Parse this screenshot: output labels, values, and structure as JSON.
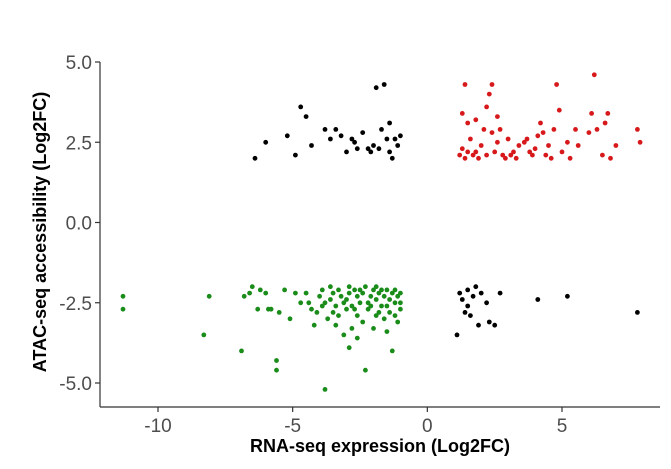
{
  "chart_data": {
    "type": "scatter",
    "title": "",
    "xlabel": "RNA-seq expression (Log2FC)",
    "ylabel": "ATAC-seq accessibility (Log2FC)",
    "xlim": [
      -12,
      9
    ],
    "ylim": [
      -5.6,
      5.2
    ],
    "x_ticks": [
      -10,
      -5,
      0,
      5
    ],
    "x_tick_labels": [
      "-10",
      "-5",
      "0",
      "5"
    ],
    "y_ticks": [
      5.0,
      2.5,
      0.0,
      -2.5,
      -5.0
    ],
    "y_tick_labels": [
      "5.0",
      "2.5",
      "0.0",
      "-2.5",
      "-5.0"
    ],
    "grid": false,
    "legend": "none",
    "series": [
      {
        "color": "#d7191c",
        "points": [
          [
            1.2,
            2.1
          ],
          [
            1.3,
            2.3
          ],
          [
            1.4,
            2.0
          ],
          [
            1.5,
            2.2
          ],
          [
            1.6,
            2.6
          ],
          [
            1.7,
            2.1
          ],
          [
            1.8,
            2.2
          ],
          [
            1.3,
            3.4
          ],
          [
            1.5,
            3.1
          ],
          [
            1.4,
            4.3
          ],
          [
            1.9,
            2.0
          ],
          [
            2.0,
            2.4
          ],
          [
            2.1,
            2.9
          ],
          [
            2.2,
            2.1
          ],
          [
            2.3,
            4.0
          ],
          [
            2.4,
            2.8
          ],
          [
            2.5,
            2.2
          ],
          [
            2.6,
            3.3
          ],
          [
            2.7,
            2.9
          ],
          [
            2.8,
            2.1
          ],
          [
            2.9,
            2.0
          ],
          [
            3.0,
            2.6
          ],
          [
            3.1,
            2.1
          ],
          [
            3.2,
            2.2
          ],
          [
            3.4,
            2.4
          ],
          [
            3.6,
            2.5
          ],
          [
            3.8,
            2.2
          ],
          [
            3.9,
            2.1
          ],
          [
            4.0,
            2.3
          ],
          [
            4.1,
            2.7
          ],
          [
            4.3,
            2.8
          ],
          [
            4.4,
            2.1
          ],
          [
            4.5,
            2.4
          ],
          [
            4.6,
            2.0
          ],
          [
            4.7,
            2.9
          ],
          [
            4.8,
            4.3
          ],
          [
            4.9,
            3.5
          ],
          [
            5.0,
            2.2
          ],
          [
            5.2,
            2.5
          ],
          [
            5.3,
            2.0
          ],
          [
            5.5,
            2.9
          ],
          [
            5.6,
            2.4
          ],
          [
            1.8,
            3.2
          ],
          [
            2.2,
            3.6
          ],
          [
            2.4,
            4.3
          ],
          [
            3.7,
            2.6
          ],
          [
            4.2,
            3.1
          ],
          [
            6.0,
            2.8
          ],
          [
            6.1,
            3.4
          ],
          [
            6.2,
            4.6
          ],
          [
            6.3,
            2.9
          ],
          [
            6.5,
            2.1
          ],
          [
            6.6,
            3.1
          ],
          [
            6.7,
            3.4
          ],
          [
            6.8,
            2.0
          ],
          [
            7.0,
            2.4
          ],
          [
            7.8,
            2.9
          ],
          [
            7.9,
            2.5
          ],
          [
            2.6,
            2.5
          ],
          [
            3.3,
            2.0
          ]
        ]
      },
      {
        "color": "#000000",
        "points": [
          [
            -6.4,
            2.0
          ],
          [
            -6.0,
            2.5
          ],
          [
            -5.2,
            2.7
          ],
          [
            -4.9,
            2.1
          ],
          [
            -4.7,
            3.6
          ],
          [
            -4.5,
            3.3
          ],
          [
            -4.3,
            2.4
          ],
          [
            -3.8,
            2.9
          ],
          [
            -3.6,
            2.6
          ],
          [
            -3.4,
            2.9
          ],
          [
            -3.2,
            2.7
          ],
          [
            -3.0,
            2.2
          ],
          [
            -2.8,
            2.6
          ],
          [
            -2.6,
            2.3
          ],
          [
            -2.4,
            2.8
          ],
          [
            -2.2,
            2.3
          ],
          [
            -2.0,
            2.4
          ],
          [
            -1.9,
            4.2
          ],
          [
            -1.7,
            2.9
          ],
          [
            -1.6,
            4.3
          ],
          [
            -1.5,
            2.6
          ],
          [
            -1.4,
            2.2
          ],
          [
            -1.3,
            2.0
          ],
          [
            -1.2,
            2.6
          ],
          [
            -1.1,
            2.4
          ],
          [
            -1.0,
            2.7
          ],
          [
            -1.4,
            3.1
          ],
          [
            -2.7,
            2.5
          ],
          [
            -2.1,
            2.2
          ],
          [
            -1.8,
            2.3
          ],
          [
            1.1,
            -3.5
          ],
          [
            1.2,
            -2.2
          ],
          [
            1.3,
            -2.4
          ],
          [
            1.4,
            -2.8
          ],
          [
            1.5,
            -2.1
          ],
          [
            1.6,
            -2.9
          ],
          [
            1.7,
            -2.3
          ],
          [
            1.8,
            -2.0
          ],
          [
            2.0,
            -2.2
          ],
          [
            2.2,
            -2.5
          ],
          [
            2.3,
            -3.1
          ],
          [
            2.5,
            -3.2
          ],
          [
            2.7,
            -2.2
          ],
          [
            4.1,
            -2.4
          ],
          [
            5.2,
            -2.3
          ],
          [
            7.8,
            -2.8
          ],
          [
            1.9,
            -3.2
          ],
          [
            1.5,
            -2.6
          ]
        ]
      },
      {
        "color": "#1a8c1a",
        "points": [
          [
            -11.3,
            -2.3
          ],
          [
            -11.3,
            -2.7
          ],
          [
            -8.3,
            -3.5
          ],
          [
            -8.1,
            -2.3
          ],
          [
            -6.9,
            -4.0
          ],
          [
            -6.8,
            -2.3
          ],
          [
            -6.6,
            -2.2
          ],
          [
            -6.5,
            -2.0
          ],
          [
            -6.3,
            -2.7
          ],
          [
            -6.2,
            -2.1
          ],
          [
            -6.0,
            -2.2
          ],
          [
            -5.9,
            -2.7
          ],
          [
            -5.8,
            -2.7
          ],
          [
            -5.6,
            -4.6
          ],
          [
            -5.6,
            -4.3
          ],
          [
            -5.5,
            -2.8
          ],
          [
            -5.3,
            -2.1
          ],
          [
            -5.1,
            -3.0
          ],
          [
            -4.9,
            -2.2
          ],
          [
            -4.7,
            -2.5
          ],
          [
            -4.5,
            -2.2
          ],
          [
            -4.3,
            -2.7
          ],
          [
            -4.2,
            -3.2
          ],
          [
            -4.0,
            -2.3
          ],
          [
            -3.9,
            -2.1
          ],
          [
            -3.8,
            -2.5
          ],
          [
            -3.8,
            -5.2
          ],
          [
            -3.7,
            -3.0
          ],
          [
            -3.6,
            -2.4
          ],
          [
            -3.5,
            -2.2
          ],
          [
            -3.4,
            -2.6
          ],
          [
            -3.3,
            -2.1
          ],
          [
            -3.2,
            -2.3
          ],
          [
            -3.1,
            -3.5
          ],
          [
            -3.0,
            -2.4
          ],
          [
            -2.9,
            -2.2
          ],
          [
            -2.9,
            -3.9
          ],
          [
            -2.8,
            -2.6
          ],
          [
            -2.7,
            -2.1
          ],
          [
            -2.6,
            -2.3
          ],
          [
            -2.5,
            -2.5
          ],
          [
            -2.4,
            -2.2
          ],
          [
            -2.3,
            -4.6
          ],
          [
            -2.2,
            -2.7
          ],
          [
            -2.1,
            -2.3
          ],
          [
            -2.0,
            -2.1
          ],
          [
            -1.9,
            -2.4
          ],
          [
            -1.8,
            -2.2
          ],
          [
            -1.7,
            -2.6
          ],
          [
            -1.6,
            -2.3
          ],
          [
            -1.5,
            -2.1
          ],
          [
            -1.4,
            -2.4
          ],
          [
            -1.3,
            -2.2
          ],
          [
            -1.2,
            -2.5
          ],
          [
            -1.1,
            -2.3
          ],
          [
            -1.0,
            -2.2
          ],
          [
            -1.3,
            -4.0
          ],
          [
            -1.2,
            -2.9
          ],
          [
            -1.0,
            -2.7
          ],
          [
            -1.1,
            -3.1
          ],
          [
            -2.6,
            -2.9
          ],
          [
            -3.5,
            -2.8
          ],
          [
            -4.1,
            -2.8
          ],
          [
            -2.0,
            -3.3
          ],
          [
            -1.6,
            -3.0
          ],
          [
            -2.4,
            -3.1
          ],
          [
            -3.0,
            -2.7
          ],
          [
            -1.8,
            -2.8
          ],
          [
            -2.2,
            -2.5
          ],
          [
            -2.8,
            -3.3
          ],
          [
            -3.3,
            -2.9
          ],
          [
            -1.5,
            -2.6
          ],
          [
            -2.5,
            -2.1
          ],
          [
            -3.6,
            -2.0
          ],
          [
            -1.9,
            -2.9
          ],
          [
            -2.3,
            -2.0
          ],
          [
            -1.4,
            -2.8
          ],
          [
            -3.9,
            -2.6
          ],
          [
            -4.4,
            -2.5
          ],
          [
            -2.7,
            -2.7
          ],
          [
            -1.7,
            -2.1
          ],
          [
            -2.1,
            -2.6
          ],
          [
            -3.1,
            -2.5
          ],
          [
            -2.9,
            -2.0
          ],
          [
            -1.2,
            -2.1
          ],
          [
            -1.5,
            -3.4
          ],
          [
            -2.6,
            -3.6
          ],
          [
            -3.4,
            -3.2
          ],
          [
            -1.9,
            -2.0
          ],
          [
            -1.0,
            -2.5
          ]
        ]
      }
    ]
  }
}
